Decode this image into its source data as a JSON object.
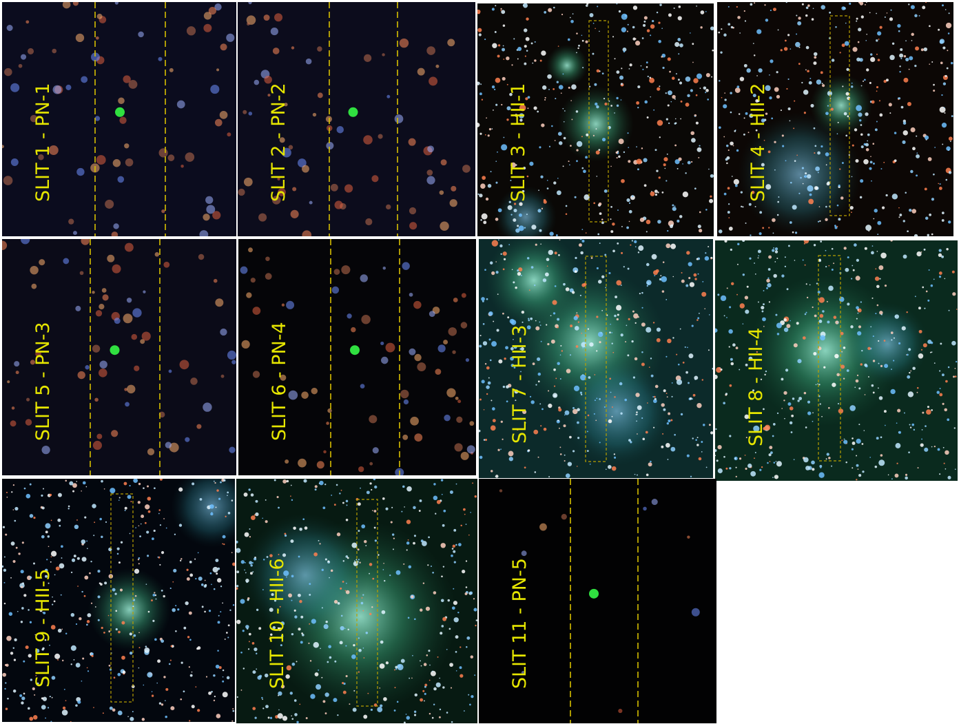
{
  "panels": [
    {
      "label": "SLIT 1 - PN-1"
    },
    {
      "label": "SLIT 2 - PN-2"
    },
    {
      "label": "SLIT 3 - HII-1"
    },
    {
      "label": "SLIT 4 - HII-2"
    },
    {
      "label": "SLIT 5 - PN-3"
    },
    {
      "label": "SLIT 6 - PN-4"
    },
    {
      "label": "SLIT 7 - HII-3"
    },
    {
      "label": "SLIT 8 - HII-4"
    },
    {
      "label": "SLIT 9 - HII-5"
    },
    {
      "label": "SLIT 10 - HII-6"
    },
    {
      "label": "SLIT 11 - PN-5"
    }
  ]
}
